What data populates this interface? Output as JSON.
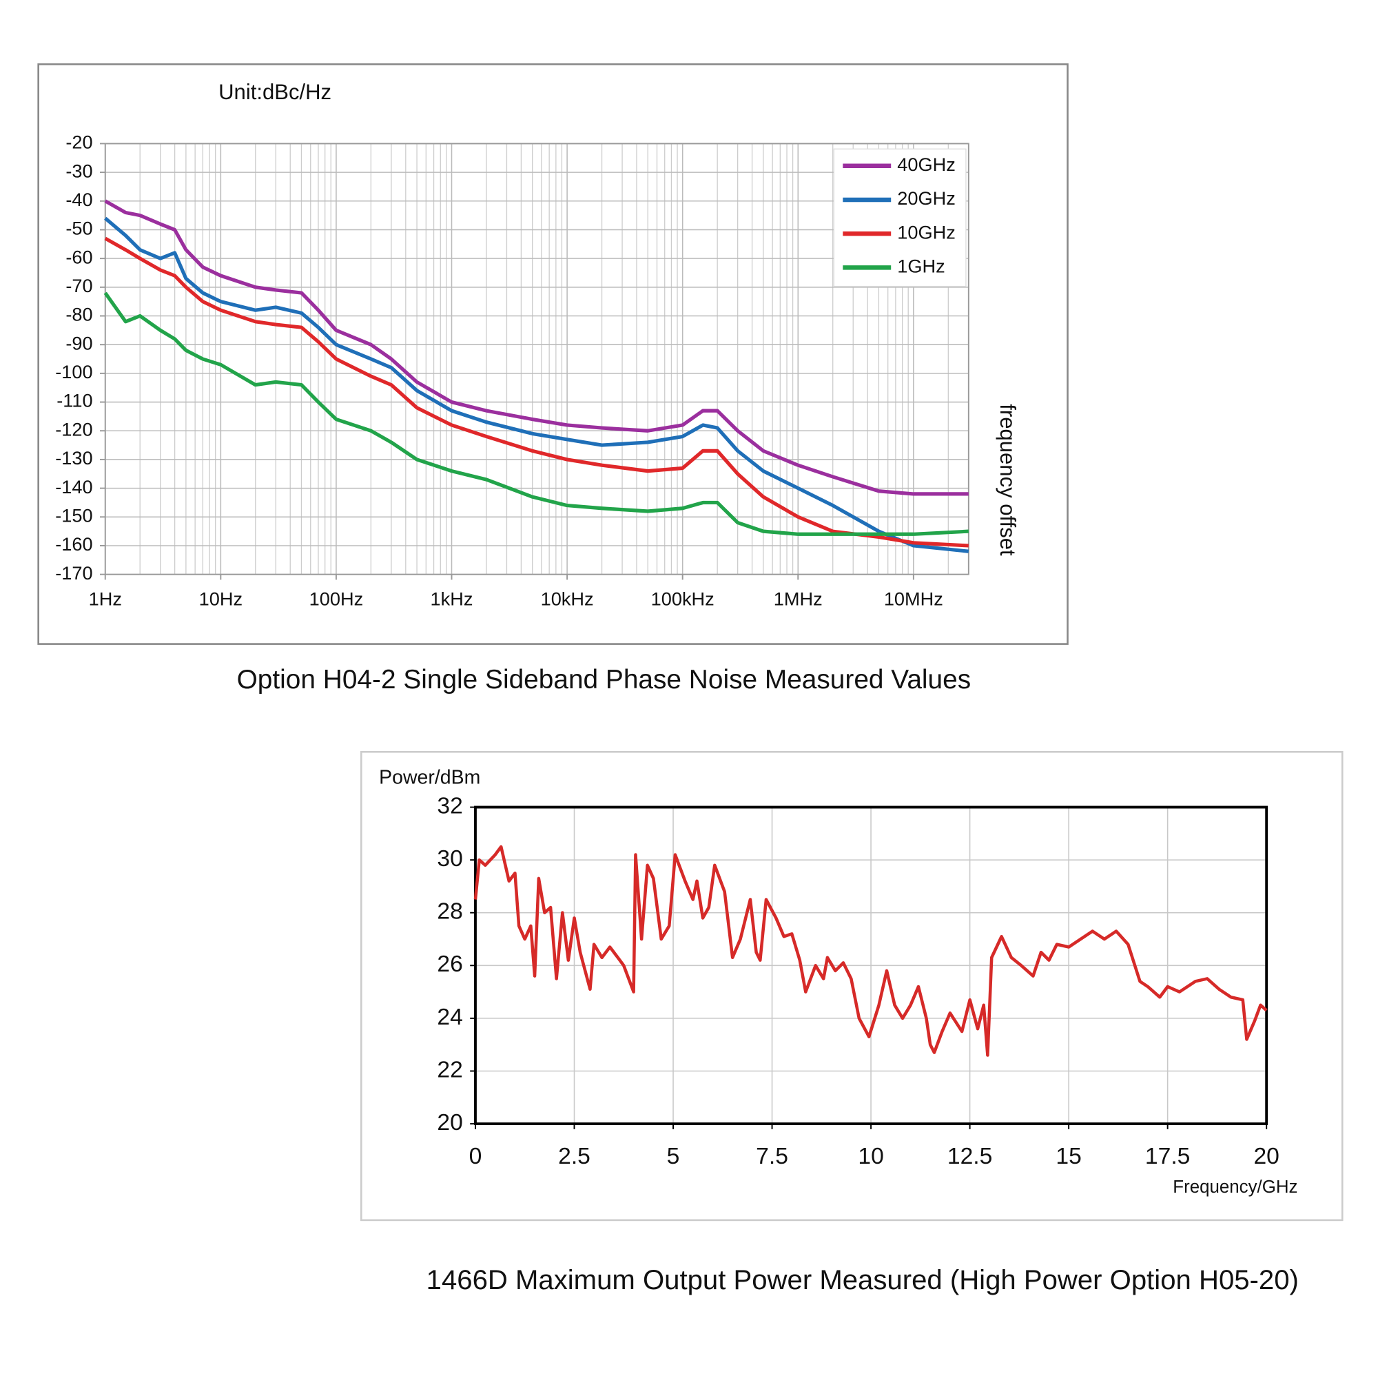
{
  "chart_data": [
    {
      "type": "line",
      "title": "Option H04-2 Single Sideband Phase Noise Measured Values",
      "y_label": "Unit:dBc/Hz",
      "x_label": "frequency offset",
      "xscale": "log",
      "grid": true,
      "legend": "upper right",
      "xlim": [
        1,
        30000000
      ],
      "ylim": [
        -170,
        -20
      ],
      "xticks": [
        {
          "value": 1,
          "label": "1Hz"
        },
        {
          "value": 10,
          "label": "10Hz"
        },
        {
          "value": 100,
          "label": "100Hz"
        },
        {
          "value": 1000,
          "label": "1kHz"
        },
        {
          "value": 10000,
          "label": "10kHz"
        },
        {
          "value": 100000,
          "label": "100kHz"
        },
        {
          "value": 1000000,
          "label": "1MHz"
        },
        {
          "value": 10000000,
          "label": "10MHz"
        }
      ],
      "yticks": [
        -20,
        -30,
        -40,
        -50,
        -60,
        -70,
        -80,
        -90,
        -100,
        -110,
        -120,
        -130,
        -140,
        -150,
        -160,
        -170
      ],
      "x": [
        1,
        1.5,
        2,
        3,
        4,
        5,
        7,
        10,
        20,
        30,
        50,
        70,
        100,
        200,
        300,
        500,
        1000,
        2000,
        5000,
        10000,
        20000,
        50000,
        100000,
        150000,
        200000,
        300000,
        500000,
        1000000,
        2000000,
        5000000,
        10000000,
        30000000
      ],
      "series": [
        {
          "name": "40GHz",
          "color": "#9b2f9e",
          "values": [
            -40,
            -44,
            -45,
            -48,
            -50,
            -57,
            -63,
            -66,
            -70,
            -71,
            -72,
            -78,
            -85,
            -90,
            -95,
            -103,
            -110,
            -113,
            -116,
            -118,
            -119,
            -120,
            -118,
            -113,
            -113,
            -120,
            -127,
            -132,
            -136,
            -141,
            -142,
            -142
          ]
        },
        {
          "name": "20GHz",
          "color": "#1f6fb8",
          "values": [
            -46,
            -52,
            -57,
            -60,
            -58,
            -67,
            -72,
            -75,
            -78,
            -77,
            -79,
            -84,
            -90,
            -95,
            -98,
            -106,
            -113,
            -117,
            -121,
            -123,
            -125,
            -124,
            -122,
            -118,
            -119,
            -127,
            -134,
            -140,
            -146,
            -155,
            -160,
            -162
          ]
        },
        {
          "name": "10GHz",
          "color": "#e0282a",
          "values": [
            -53,
            -57,
            -60,
            -64,
            -66,
            -70,
            -75,
            -78,
            -82,
            -83,
            -84,
            -89,
            -95,
            -101,
            -104,
            -112,
            -118,
            -122,
            -127,
            -130,
            -132,
            -134,
            -133,
            -127,
            -127,
            -135,
            -143,
            -150,
            -155,
            -157,
            -159,
            -160
          ]
        },
        {
          "name": "1GHz",
          "color": "#22a44a",
          "values": [
            -72,
            -82,
            -80,
            -85,
            -88,
            -92,
            -95,
            -97,
            -104,
            -103,
            -104,
            -110,
            -116,
            -120,
            -124,
            -130,
            -134,
            -137,
            -143,
            -146,
            -147,
            -148,
            -147,
            -145,
            -145,
            -152,
            -155,
            -156,
            -156,
            -156,
            -156,
            -155
          ]
        }
      ]
    },
    {
      "type": "line",
      "title": "1466D Maximum Output Power Measured (High Power Option H05-20)",
      "y_label": "Power/dBm",
      "x_label": "Frequency/GHz",
      "grid": true,
      "color": "#d62a28",
      "xlim": [
        0,
        20
      ],
      "ylim": [
        20,
        32
      ],
      "xticks": [
        0,
        2.5,
        5,
        7.5,
        10,
        12.5,
        15,
        17.5,
        20
      ],
      "yticks": [
        32,
        30,
        28,
        26,
        24,
        22,
        20
      ],
      "x": [
        0,
        0.1,
        0.25,
        0.5,
        0.65,
        0.85,
        1,
        1.1,
        1.25,
        1.4,
        1.5,
        1.6,
        1.75,
        1.9,
        2.05,
        2.2,
        2.35,
        2.5,
        2.65,
        2.9,
        3,
        3.2,
        3.4,
        3.6,
        3.75,
        4,
        4.05,
        4.2,
        4.35,
        4.5,
        4.7,
        4.9,
        5.05,
        5.3,
        5.5,
        5.6,
        5.75,
        5.9,
        6.05,
        6.3,
        6.5,
        6.7,
        6.95,
        7.1,
        7.2,
        7.35,
        7.6,
        7.8,
        8,
        8.2,
        8.35,
        8.6,
        8.8,
        8.9,
        9.1,
        9.3,
        9.5,
        9.7,
        9.95,
        10.2,
        10.4,
        10.6,
        10.8,
        11,
        11.2,
        11.4,
        11.5,
        11.6,
        11.8,
        12,
        12.3,
        12.5,
        12.7,
        12.85,
        12.95,
        13.05,
        13.3,
        13.55,
        13.8,
        14.1,
        14.3,
        14.5,
        14.7,
        15,
        15.3,
        15.6,
        15.9,
        16.2,
        16.5,
        16.8,
        17,
        17.3,
        17.5,
        17.8,
        18.2,
        18.5,
        18.8,
        19.1,
        19.4,
        19.5,
        19.7,
        19.85,
        20
      ],
      "values": [
        28.5,
        30,
        29.8,
        30.2,
        30.5,
        29.2,
        29.5,
        27.5,
        27,
        27.5,
        25.6,
        29.3,
        28,
        28.2,
        25.5,
        28,
        26.2,
        27.8,
        26.5,
        25.1,
        26.8,
        26.3,
        26.7,
        26.3,
        26,
        25,
        30.2,
        27,
        29.8,
        29.3,
        27,
        27.5,
        30.2,
        29.2,
        28.5,
        29.2,
        27.8,
        28.2,
        29.8,
        28.8,
        26.3,
        27,
        28.5,
        26.5,
        26.2,
        28.5,
        27.8,
        27.1,
        27.2,
        26.2,
        25,
        26,
        25.5,
        26.3,
        25.8,
        26.1,
        25.5,
        24,
        23.3,
        24.5,
        25.8,
        24.5,
        24,
        24.5,
        25.2,
        24,
        23,
        22.7,
        23.5,
        24.2,
        23.5,
        24.7,
        23.6,
        24.5,
        22.6,
        26.3,
        27.1,
        26.3,
        26,
        25.6,
        26.5,
        26.2,
        26.8,
        26.7,
        27,
        27.3,
        27,
        27.3,
        26.8,
        25.4,
        25.2,
        24.8,
        25.2,
        25,
        25.4,
        25.5,
        25.1,
        24.8,
        24.7,
        23.2,
        23.9,
        24.5,
        24.3
      ]
    }
  ]
}
